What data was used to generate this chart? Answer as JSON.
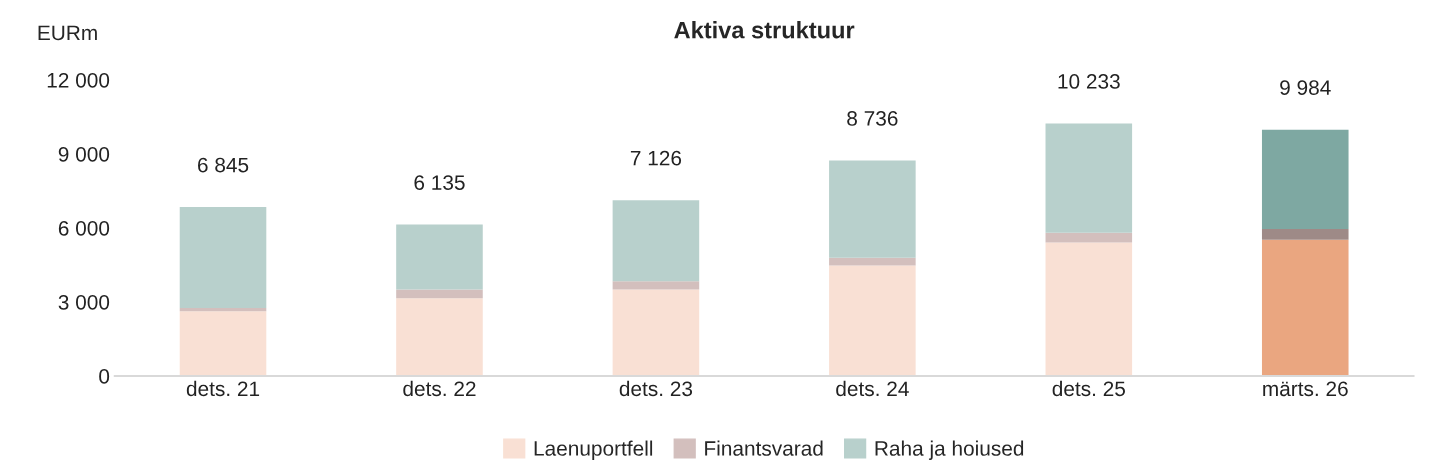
{
  "chart_data": {
    "type": "bar",
    "title": "Aktiva struktuur",
    "ylabel": "EURm",
    "stacked": true,
    "categories": [
      "dets. 21",
      "dets. 22",
      "dets. 23",
      "dets. 24",
      "dets. 25",
      "märts. 26"
    ],
    "series": [
      {
        "name": "Laenuportfell",
        "color": "#f9e0d4",
        "colors": [
          "#f9e0d4",
          "#f9e0d4",
          "#f9e0d4",
          "#f9e0d4",
          "#f9e0d4",
          "#eaa680"
        ],
        "values": [
          2620,
          3150,
          3510,
          4480,
          5410,
          5520
        ]
      },
      {
        "name": "Finantsvarad",
        "color": "#d3bfbd",
        "colors": [
          "#d3bfbd",
          "#d3bfbd",
          "#d3bfbd",
          "#d3bfbd",
          "#d3bfbd",
          "#9e8a87"
        ],
        "values": [
          140,
          360,
          330,
          310,
          400,
          440
        ]
      },
      {
        "name": "Raha ja hoiused",
        "color": "#b8d0cc",
        "colors": [
          "#b8d0cc",
          "#b8d0cc",
          "#b8d0cc",
          "#b8d0cc",
          "#b8d0cc",
          "#7ea8a2"
        ],
        "values": [
          4085,
          2625,
          3286,
          3946,
          4423,
          4024
        ]
      }
    ],
    "totals": [
      "6 845",
      "6 135",
      "7 126",
      "8 736",
      "10 233",
      "9 984"
    ],
    "ylim": [
      0,
      12000
    ],
    "yticks": [
      {
        "value": 0,
        "label": "0"
      },
      {
        "value": 3000,
        "label": "3 000"
      },
      {
        "value": 6000,
        "label": "6 000"
      },
      {
        "value": 9000,
        "label": "9 000"
      },
      {
        "value": 12000,
        "label": "12 000"
      }
    ],
    "grid": false,
    "legend": "bottom"
  }
}
